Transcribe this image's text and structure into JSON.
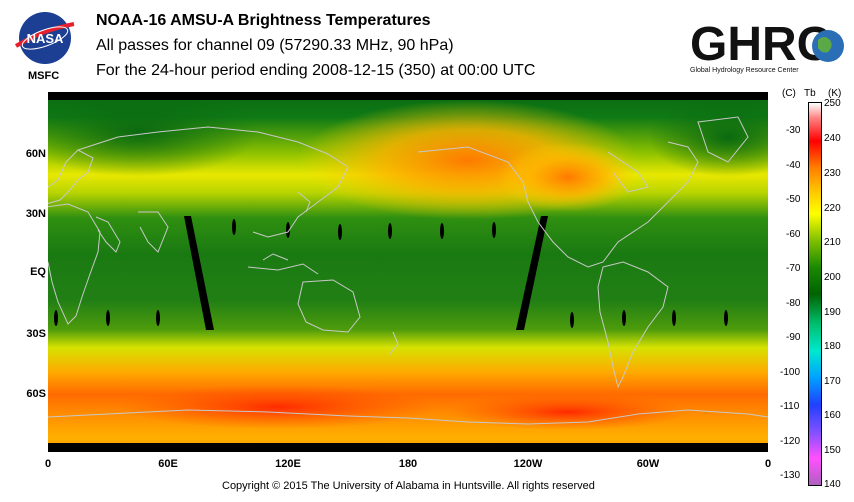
{
  "header": {
    "title": "NOAA-16 AMSU-A Brightness Temperatures",
    "subtitle": "All passes for channel 09 (57290.33 MHz, 90 hPa)",
    "period": "For the 24-hour period ending 2008-12-15 (350) at 00:00 UTC"
  },
  "logos": {
    "nasa_text": "NASA",
    "msfc_text": "MSFC",
    "ghrc_text": "GHRC",
    "ghrc_subtitle": "Global Hydrology Resource Center"
  },
  "map": {
    "lat_labels": [
      "60N",
      "30N",
      "EQ",
      "30S",
      "60S"
    ],
    "lon_labels": [
      "0",
      "60E",
      "120E",
      "180",
      "120W",
      "60W",
      "0"
    ]
  },
  "colorbar": {
    "unit_c": "(C)",
    "unit_tb": "Tb",
    "unit_k": "(K)",
    "kelvin_ticks": [
      "250",
      "240",
      "230",
      "220",
      "210",
      "200",
      "190",
      "180",
      "170",
      "160",
      "150",
      "140"
    ],
    "celsius_ticks": [
      "-30",
      "-40",
      "-50",
      "-60",
      "-70",
      "-80",
      "-90",
      "-100",
      "-110",
      "-120",
      "-130"
    ],
    "range_k": [
      140,
      250
    ],
    "colors": [
      "#b060c0",
      "#ff50ff",
      "#8050ff",
      "#2040ff",
      "#00c8ff",
      "#00e8a0",
      "#006400",
      "#30b000",
      "#ffff00",
      "#ff8000",
      "#ff0000",
      "#ffffff"
    ]
  },
  "footer": {
    "copyright": "Copyright © 2015 The University of Alabama in Huntsville.  All rights reserved"
  }
}
